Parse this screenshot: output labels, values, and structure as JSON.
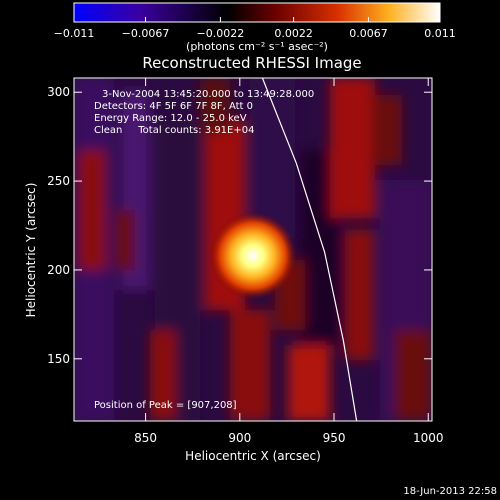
{
  "chart_data": {
    "type": "heatmap",
    "title": "Reconstructed RHESSI Image",
    "xlabel": "Heliocentric X (arcsec)",
    "ylabel": "Heliocentric Y (arcsec)",
    "xlim": [
      812,
      1002
    ],
    "ylim": [
      115,
      308
    ],
    "x_ticks": [
      850,
      900,
      950,
      1000
    ],
    "y_ticks": [
      150,
      200,
      250,
      300
    ],
    "colorbar": {
      "ticks": [
        -0.011,
        -0.0067,
        -0.0022,
        0.0022,
        0.0067,
        0.011
      ],
      "tick_labels": [
        "−0.011",
        "−0.0067",
        "−0.0022",
        "0.0022",
        "0.0067",
        "0.011"
      ],
      "range": [
        -0.011,
        0.011
      ],
      "colors": [
        "#0000ff",
        "#4a0090",
        "#000000",
        "#a01000",
        "#ff6a00",
        "#ffff40",
        "#ffffff"
      ]
    },
    "peak": {
      "x": 907,
      "y": 208
    },
    "limb_curve": [
      [
        912,
        308
      ],
      [
        930,
        260
      ],
      [
        945,
        210
      ],
      [
        955,
        160
      ],
      [
        962,
        115
      ]
    ]
  },
  "labels": {
    "colorbar_unit": "(photons cm⁻² s⁻¹ asec⁻²)",
    "time_range": "3-Nov-2004 13:45:20.000 to 13:49:28.000",
    "detectors": "Detectors: 4F 5F 6F 7F 8F, Att 0",
    "energy": "Energy Range: 12.0 - 25.0 keV",
    "clean": "Clean     Total counts: 3.91E+04",
    "peak_text": "Position of Peak = [907,208]",
    "timestamp": "18-Jun-2013 22:58"
  }
}
